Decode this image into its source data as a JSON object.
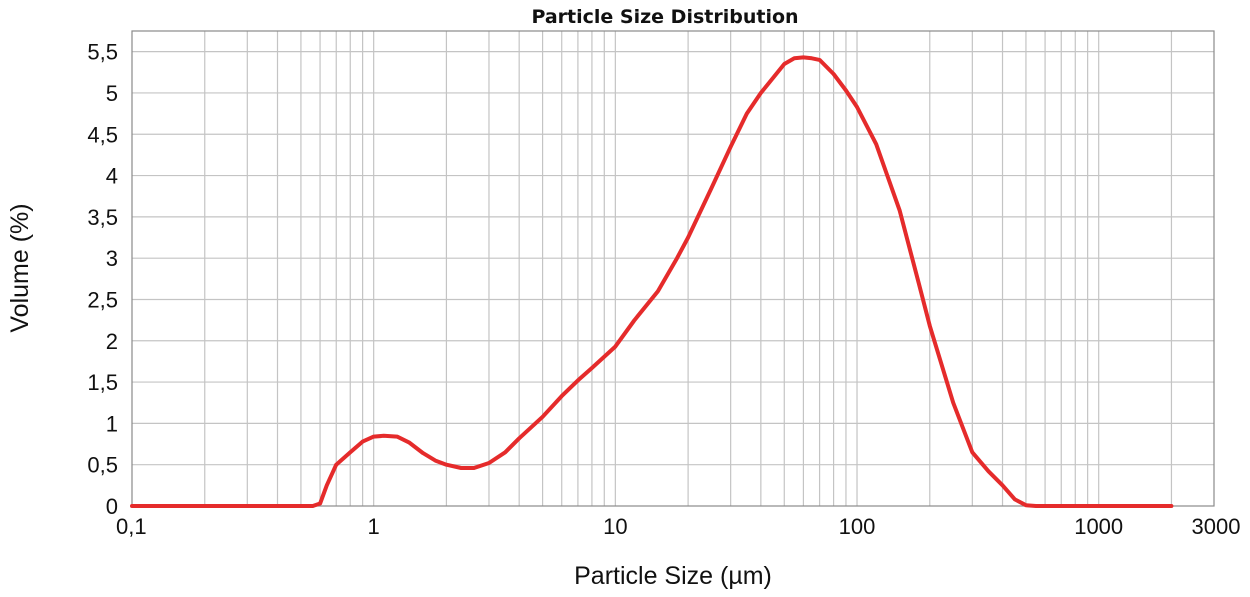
{
  "chart_data": {
    "type": "line",
    "title": "Particle Size Distribution",
    "xlabel": "Particle Size (µm)",
    "ylabel": "Volume (%)",
    "x_scale": "log",
    "xlim": [
      0.1,
      3000
    ],
    "ylim": [
      0,
      5.75
    ],
    "grid": true,
    "x_ticks": [
      {
        "value": 0.1,
        "label": "0,1"
      },
      {
        "value": 1,
        "label": "1"
      },
      {
        "value": 10,
        "label": "10"
      },
      {
        "value": 100,
        "label": "100"
      },
      {
        "value": 1000,
        "label": "1000"
      },
      {
        "value": 3000,
        "label": "3000"
      }
    ],
    "y_ticks": [
      {
        "value": 0,
        "label": "0"
      },
      {
        "value": 0.5,
        "label": "0,5"
      },
      {
        "value": 1,
        "label": "1"
      },
      {
        "value": 1.5,
        "label": "1,5"
      },
      {
        "value": 2,
        "label": "2"
      },
      {
        "value": 2.5,
        "label": "2,5"
      },
      {
        "value": 3,
        "label": "3"
      },
      {
        "value": 3.5,
        "label": "3,5"
      },
      {
        "value": 4,
        "label": "4"
      },
      {
        "value": 4.5,
        "label": "4,5"
      },
      {
        "value": 5,
        "label": "5"
      },
      {
        "value": 5.5,
        "label": "5,5"
      }
    ],
    "series": [
      {
        "color": "#e52b2b",
        "x": [
          0.1,
          0.5,
          0.56,
          0.6,
          0.64,
          0.7,
          0.8,
          0.9,
          1.0,
          1.1,
          1.25,
          1.4,
          1.6,
          1.8,
          2.0,
          2.3,
          2.6,
          3.0,
          3.5,
          4.0,
          5.0,
          6.0,
          7.0,
          8.0,
          10,
          12,
          15,
          18,
          20,
          25,
          30,
          35,
          40,
          50,
          55,
          60,
          65,
          70,
          80,
          90,
          100,
          120,
          150,
          180,
          200,
          250,
          300,
          350,
          400,
          450,
          500,
          550,
          600,
          1000,
          2000
        ],
        "y": [
          0,
          0,
          0,
          0.03,
          0.25,
          0.5,
          0.65,
          0.78,
          0.84,
          0.85,
          0.84,
          0.77,
          0.64,
          0.55,
          0.5,
          0.46,
          0.46,
          0.52,
          0.65,
          0.82,
          1.08,
          1.33,
          1.52,
          1.67,
          1.93,
          2.25,
          2.6,
          3.0,
          3.25,
          3.85,
          4.35,
          4.75,
          5.0,
          5.35,
          5.42,
          5.43,
          5.42,
          5.4,
          5.23,
          5.03,
          4.83,
          4.38,
          3.58,
          2.7,
          2.18,
          1.25,
          0.65,
          0.42,
          0.25,
          0.08,
          0.01,
          0,
          0,
          0,
          0
        ]
      }
    ]
  }
}
